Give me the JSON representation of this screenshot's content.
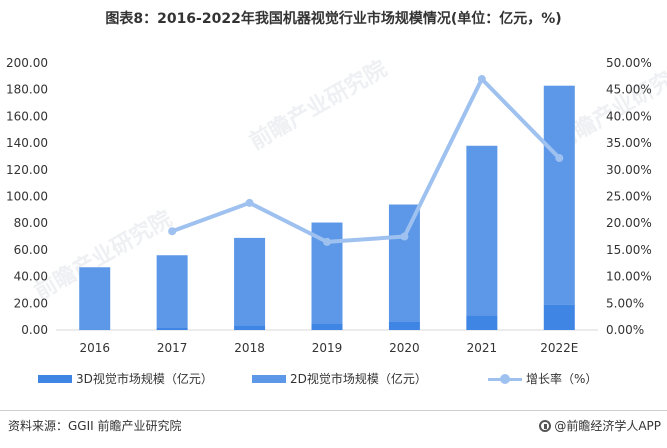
{
  "title": "图表8：2016-2022年我国机器视觉行业市场规模情况(单位：亿元，%)",
  "colors": {
    "bar_3d": "#3f85e3",
    "bar_2d": "#5d98e8",
    "line": "#9ec1f0",
    "axis": "#d9d9d9",
    "text": "#333333"
  },
  "chart_data": {
    "type": "bar",
    "categories": [
      "2016",
      "2017",
      "2018",
      "2019",
      "2020",
      "2021",
      "2022E"
    ],
    "series": [
      {
        "name": "3D视觉市场规模（亿元）",
        "kind": "bar",
        "stacked": true,
        "values": [
          0.5,
          1.5,
          3.5,
          4.5,
          6,
          11,
          19
        ]
      },
      {
        "name": "2D视觉市场规模（亿元）",
        "kind": "bar",
        "stacked": true,
        "values": [
          46.5,
          54.5,
          65.5,
          76,
          88,
          127,
          164
        ]
      },
      {
        "name": "增长率（%）",
        "kind": "line",
        "axis": "right",
        "values": [
          null,
          18.5,
          23.8,
          16.5,
          17.5,
          47.0,
          32.2
        ]
      }
    ],
    "ylim": [
      0,
      200
    ],
    "yticks": [
      "0.00",
      "20.00",
      "40.00",
      "60.00",
      "80.00",
      "100.00",
      "120.00",
      "140.00",
      "160.00",
      "180.00",
      "200.00"
    ],
    "y2lim": [
      0,
      50
    ],
    "y2ticks": [
      "0.00%",
      "5.00%",
      "10.00%",
      "15.00%",
      "20.00%",
      "25.00%",
      "30.00%",
      "35.00%",
      "40.00%",
      "45.00%",
      "50.00%"
    ],
    "grid": false,
    "legend_position": "bottom"
  },
  "legend": {
    "item1": "3D视觉市场规模（亿元）",
    "item2": "2D视觉市场规模（亿元）",
    "item3": "增长率（%）"
  },
  "footer": {
    "source": "资料来源：GGII 前瞻产业研究院",
    "brand": "@前瞻经济学人APP"
  },
  "watermark": "前瞻产业研究院"
}
